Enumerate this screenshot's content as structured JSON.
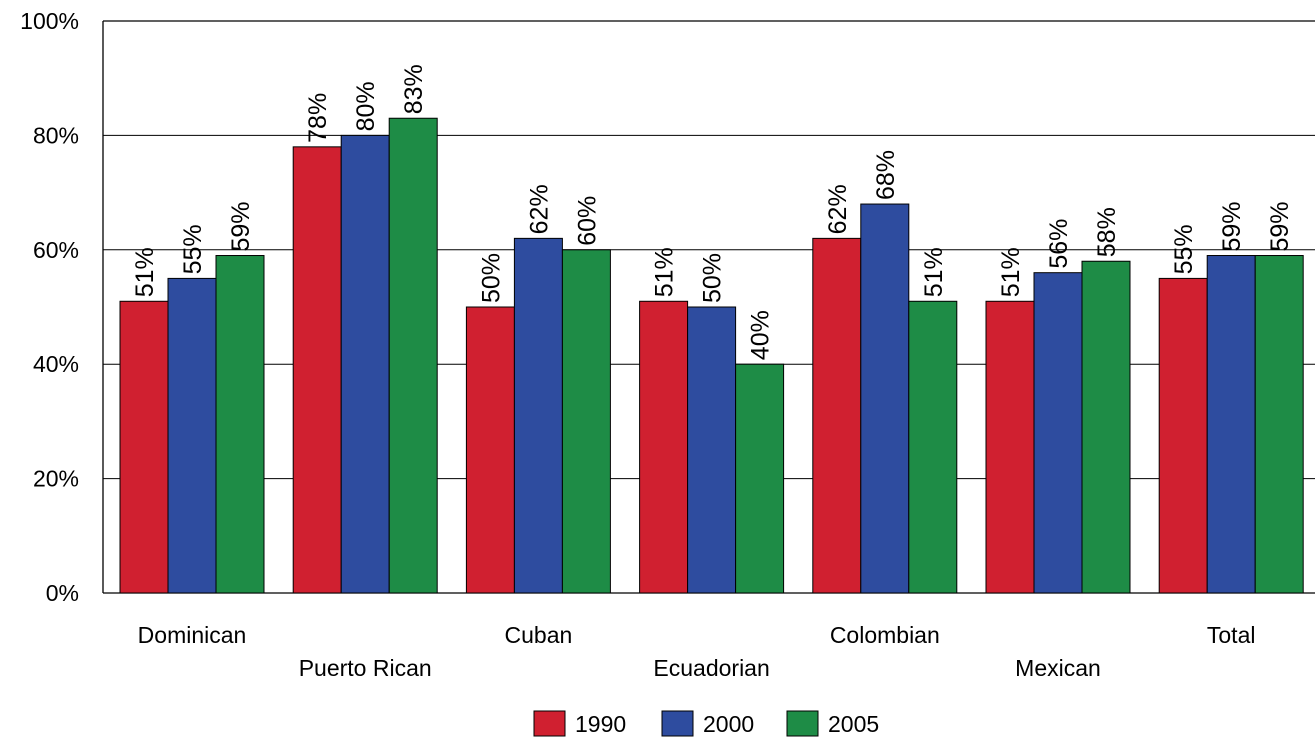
{
  "chart_data": {
    "type": "bar",
    "categories": [
      "Dominican",
      "Puerto Rican",
      "Cuban",
      "Ecuadorian",
      "Colombian",
      "Mexican",
      "Total"
    ],
    "series": [
      {
        "name": "1990",
        "color": "#d02030",
        "values": [
          51,
          78,
          50,
          51,
          62,
          51,
          55
        ],
        "labels": [
          "51%",
          "78%",
          "50%",
          "51%",
          "62%",
          "51%",
          "55%"
        ]
      },
      {
        "name": "2000",
        "color": "#2e4c9f",
        "values": [
          55,
          80,
          62,
          50,
          68,
          56,
          59
        ],
        "labels": [
          "55%",
          "80%",
          "62%",
          "50%",
          "68%",
          "56%",
          "59%"
        ]
      },
      {
        "name": "2005",
        "color": "#1e8c46",
        "values": [
          59,
          83,
          60,
          40,
          51,
          58,
          59
        ],
        "labels": [
          "59%",
          "83%",
          "60%",
          "40%",
          "51%",
          "58%",
          "59%"
        ]
      }
    ],
    "ylim": [
      0,
      100
    ],
    "yticks": [
      0,
      20,
      40,
      60,
      80,
      100
    ],
    "ytick_labels": [
      "0%",
      "20%",
      "40%",
      "60%",
      "80%",
      "100%"
    ],
    "grid": true,
    "legend_position": "bottom-center"
  }
}
